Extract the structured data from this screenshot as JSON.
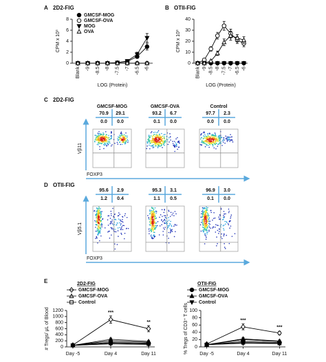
{
  "chart_data": [
    {
      "type": "line",
      "label": "A",
      "title": "2D2-FIG",
      "ylabel": "CPM x 10³",
      "xlabel": "LOG (Protein)",
      "categories": [
        "Blank",
        "-9",
        "-8.5",
        "-8",
        "-7.5",
        "-7",
        "-6.5",
        "-6"
      ],
      "ylim": [
        0,
        8
      ],
      "yticks": [
        0,
        2,
        4,
        6,
        8
      ],
      "legend": "upper-left",
      "series": [
        {
          "name": "GMCSF-MOG",
          "marker": "circle",
          "filled": true,
          "color": "#000000",
          "values": [
            0,
            0,
            0,
            0,
            0.1,
            0.3,
            1.2,
            3.0
          ],
          "errors": [
            0,
            0,
            0,
            0,
            0.05,
            0.1,
            0.3,
            0.6
          ]
        },
        {
          "name": "GMCSF-OVA",
          "marker": "circle",
          "filled": false,
          "color": "#000000",
          "values": [
            0,
            0,
            0,
            0,
            0,
            0,
            0,
            0
          ]
        },
        {
          "name": "MOG",
          "marker": "triangle-down",
          "filled": true,
          "color": "#000000",
          "values": [
            0,
            0,
            0,
            0,
            0.1,
            0.4,
            1.6,
            4.6
          ],
          "errors": [
            0,
            0,
            0,
            0,
            0.05,
            0.1,
            0.4,
            0.8
          ]
        },
        {
          "name": "OVA",
          "marker": "triangle-up",
          "filled": false,
          "color": "#000000",
          "values": [
            0,
            0,
            0,
            0,
            0,
            0,
            0,
            0
          ]
        }
      ]
    },
    {
      "type": "line",
      "label": "B",
      "title": "OTII-FIG",
      "ylabel": "CPM x 10³",
      "xlabel": "LOG (Protein)",
      "categories": [
        "Blank",
        "-9",
        "-8.5",
        "-8",
        "-7.5",
        "-7",
        "-6.5",
        "-6"
      ],
      "ylim": [
        0,
        40
      ],
      "yticks": [
        0,
        10,
        20,
        30,
        40
      ],
      "series": [
        {
          "marker": "circle",
          "filled": true,
          "color": "#000000",
          "values": [
            0,
            0,
            0,
            0,
            0,
            0,
            0,
            0
          ]
        },
        {
          "marker": "circle",
          "filled": false,
          "color": "#000000",
          "values": [
            0,
            3,
            13,
            25,
            34,
            27,
            21,
            18
          ],
          "errors": [
            0,
            1,
            2,
            3,
            4,
            4,
            3,
            3
          ]
        },
        {
          "marker": "triangle-down",
          "filled": true,
          "color": "#000000",
          "values": [
            0,
            0,
            0,
            0,
            0,
            0,
            0,
            0
          ]
        },
        {
          "marker": "triangle-up",
          "filled": false,
          "color": "#000000",
          "values": [
            0,
            0,
            2,
            9,
            19,
            25,
            23,
            21
          ],
          "errors": [
            0,
            0,
            1,
            2,
            3,
            4,
            3,
            3
          ]
        }
      ]
    },
    {
      "type": "line",
      "label": "E",
      "categories": [
        "Day -5",
        "Day 4",
        "Day 11"
      ],
      "groups": [
        {
          "title": "2D2-FIG",
          "series": [
            {
              "name": "GMCSF-MOG",
              "marker": "diamond",
              "filled": false,
              "color": "#000000"
            },
            {
              "name": "GMCSF-OVA",
              "marker": "triangle-up",
              "filled": false,
              "color": "#000000"
            },
            {
              "name": "Control",
              "marker": "square",
              "filled": false,
              "color": "#000000"
            }
          ]
        },
        {
          "title": "OTII-FIG",
          "series": [
            {
              "name": "GMCSF-MOG",
              "marker": "circle",
              "filled": true,
              "color": "#000000"
            },
            {
              "name": "GMCSF-OVA",
              "marker": "triangle-up",
              "filled": true,
              "color": "#000000"
            },
            {
              "name": "Control",
              "marker": "triangle-down",
              "filled": true,
              "color": "#000000"
            }
          ]
        }
      ],
      "subplots": [
        {
          "ylabel": "# Tregs/ μL of Blood",
          "ylim": [
            0,
            1200
          ],
          "yticks": [
            0,
            200,
            400,
            600,
            800,
            1000,
            1200
          ],
          "annotations": [
            null,
            "***",
            "**"
          ],
          "values": [
            [
              [
                60,
                900,
                600
              ],
              [
                50,
                200,
                150
              ],
              [
                50,
                120,
                100
              ]
            ],
            [
              [
                50,
                150,
                120
              ],
              [
                50,
                250,
                180
              ],
              [
                50,
                100,
                80
              ]
            ]
          ],
          "errors": [
            [
              [
                20,
                120,
                100
              ],
              [
                15,
                40,
                30
              ],
              [
                15,
                30,
                25
              ]
            ],
            [
              [
                15,
                30,
                25
              ],
              [
                15,
                40,
                30
              ],
              [
                15,
                25,
                20
              ]
            ]
          ]
        },
        {
          "ylabel": "% Tregs of CD3⁺ T cells",
          "ylim": [
            0,
            100
          ],
          "yticks": [
            0,
            20,
            40,
            60,
            80,
            100
          ],
          "annotations": [
            null,
            "***",
            "***"
          ],
          "values": [
            [
              [
                8,
                55,
                38
              ],
              [
                6,
                20,
                15
              ],
              [
                6,
                12,
                10
              ]
            ],
            [
              [
                6,
                15,
                12
              ],
              [
                6,
                22,
                16
              ],
              [
                6,
                10,
                9
              ]
            ]
          ],
          "errors": [
            [
              [
                3,
                8,
                5
              ],
              [
                2,
                4,
                3
              ],
              [
                2,
                3,
                3
              ]
            ],
            [
              [
                2,
                3,
                3
              ],
              [
                2,
                4,
                3
              ],
              [
                2,
                3,
                2
              ]
            ]
          ]
        }
      ]
    }
  ],
  "flow": [
    {
      "label": "C",
      "title": "2D2-FIG",
      "ylabel": "Vβ11",
      "xlabel": "FOXP3",
      "plots": [
        {
          "title": "GMCSF-MOG",
          "quadrants": [
            "70.9",
            "29.1",
            "0.0",
            "0.0"
          ]
        },
        {
          "title": "GMCSF-OVA",
          "quadrants": [
            "93.2",
            "6.7",
            "0.1",
            "0.0"
          ]
        },
        {
          "title": "Control",
          "quadrants": [
            "97.7",
            "2.3",
            "0.0",
            "0.0"
          ]
        }
      ]
    },
    {
      "label": "D",
      "title": "OTII-FIG",
      "ylabel": "Vβ5.1",
      "xlabel": "FOXP3",
      "plots": [
        {
          "quadrants": [
            "95.6",
            "2.9",
            "1.2",
            "0.4"
          ]
        },
        {
          "quadrants": [
            "95.3",
            "3.1",
            "1.1",
            "0.5"
          ]
        },
        {
          "quadrants": [
            "96.9",
            "3.0",
            "0.1",
            "0.0"
          ]
        }
      ]
    }
  ]
}
